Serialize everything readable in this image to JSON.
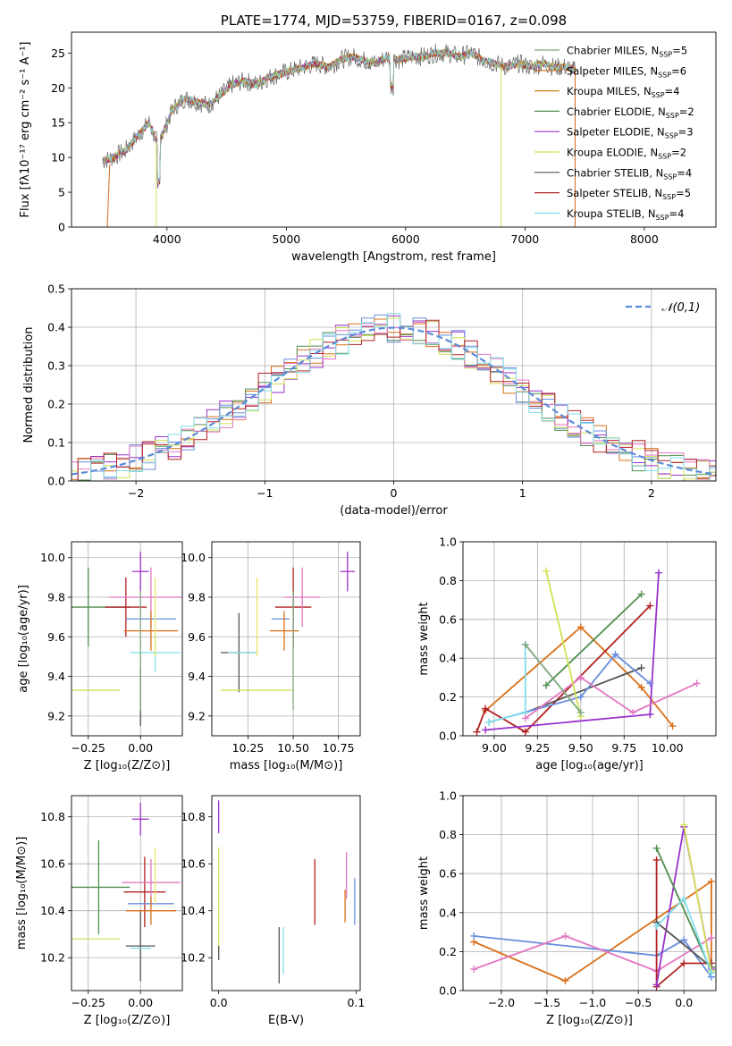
{
  "chart_data": [
    {
      "id": "spectrum",
      "type": "line",
      "title": "PLATE=1774, MJD=53759, FIBERID=0167, z=0.098",
      "xlabel": "wavelength [Angstrom, rest frame]",
      "ylabel": "Flux [fλ10⁻¹⁷ erg cm⁻² s⁻¹ A⁻¹]",
      "xlim": [
        3200,
        8600
      ],
      "ylim": [
        0,
        28
      ],
      "xticks": [
        4000,
        5000,
        6000,
        7000,
        8000
      ],
      "yticks": [
        0,
        5,
        10,
        15,
        20,
        25
      ],
      "grid": false,
      "legend_position": "right",
      "legend": [
        {
          "label": "Chabrier MILES, N",
          "sub": "SSP",
          "suffix": "=5",
          "color": "#7fa87f"
        },
        {
          "label": "Salpeter MILES, N",
          "sub": "SSP",
          "suffix": "=6",
          "color": "#d2691e"
        },
        {
          "label": "Kroupa MILES, N",
          "sub": "SSP",
          "suffix": "=4",
          "color": "#c8860a"
        },
        {
          "label": "Chabrier ELODIE, N",
          "sub": "SSP",
          "suffix": "=2",
          "color": "#4f8f4f"
        },
        {
          "label": "Salpeter ELODIE, N",
          "sub": "SSP",
          "suffix": "=3",
          "color": "#9932cc"
        },
        {
          "label": "Kroupa ELODIE, N",
          "sub": "SSP",
          "suffix": "=2",
          "color": "#d4e157"
        },
        {
          "label": "Chabrier STELIB, N",
          "sub": "SSP",
          "suffix": "=4",
          "color": "#555555"
        },
        {
          "label": "Salpeter STELIB, N",
          "sub": "SSP",
          "suffix": "=5",
          "color": "#b22222"
        },
        {
          "label": "Kroupa STELIB, N",
          "sub": "SSP",
          "suffix": "=4",
          "color": "#80deea"
        }
      ],
      "spectrum_x": [
        3460,
        3550,
        3650,
        3750,
        3850,
        3920,
        3980,
        4050,
        4150,
        4250,
        4350,
        4450,
        4550,
        4650,
        4750,
        4850,
        4950,
        5050,
        5150,
        5250,
        5350,
        5450,
        5550,
        5650,
        5750,
        5850,
        5950,
        6050,
        6150,
        6250,
        6350,
        6450,
        6550,
        6650,
        6750,
        6850,
        6950,
        7050,
        7150,
        7250,
        7350,
        7420
      ],
      "spectrum_y": [
        9.5,
        10,
        11,
        13,
        15,
        12,
        14,
        17,
        18.5,
        18,
        17.5,
        19,
        20.5,
        21,
        20.5,
        21.5,
        22,
        22.5,
        23,
        23.5,
        23,
        24,
        24.5,
        24,
        23.5,
        24.5,
        24,
        24.5,
        24.5,
        25,
        25,
        24.5,
        25,
        24,
        23.5,
        23,
        23.5,
        23,
        23.5,
        23,
        23,
        22.5
      ]
    },
    {
      "id": "residuals",
      "type": "histogram",
      "xlabel": "(data-model)/error",
      "ylabel": "Normed distribution",
      "xlim": [
        -2.5,
        2.5
      ],
      "ylim": [
        0,
        0.5
      ],
      "xticks": [
        -2,
        -1,
        0,
        1,
        2
      ],
      "yticks": [
        0.0,
        0.1,
        0.2,
        0.3,
        0.4,
        0.5
      ],
      "grid": true,
      "legend_position": "top-right",
      "reference_label": "𝒩(0,1)",
      "reference_color": "#5b8bd8",
      "bin_width": 0.1
    },
    {
      "id": "z-age",
      "type": "scatter",
      "xlabel": "Z [log₁₀(Z/Z⊙)]",
      "ylabel": "age  [log₁₀(age/yr)]",
      "xlim": [
        -0.33,
        0.2
      ],
      "ylim": [
        9.1,
        10.08
      ],
      "xticks": [
        -0.25,
        0.0
      ],
      "xticklabels": [
        "−0.25",
        "0.00"
      ],
      "yticks": [
        9.2,
        9.4,
        9.6,
        9.8,
        10.0
      ],
      "grid": true,
      "errorbars": [
        {
          "x": -0.25,
          "y": 9.75,
          "xerr": 0.2,
          "yerr": 0.2,
          "color": "#4f8f4f"
        },
        {
          "x": -0.3,
          "y": 9.33,
          "xerr": 0.2,
          "yerr": 0.0,
          "color": "#d4e157"
        },
        {
          "x": 0.0,
          "y": 9.3,
          "xerr": 0.0,
          "yerr": 0.15,
          "color": "#555555"
        },
        {
          "x": -0.07,
          "y": 9.75,
          "xerr": 0.1,
          "yerr": 0.15,
          "color": "#b22222"
        },
        {
          "x": 0.0,
          "y": 9.93,
          "xerr": 0.04,
          "yerr": 0.1,
          "color": "#9932cc"
        },
        {
          "x": 0.05,
          "y": 9.8,
          "xerr": 0.2,
          "yerr": 0.15,
          "color": "#e377c2"
        },
        {
          "x": 0.05,
          "y": 9.69,
          "xerr": 0.12,
          "yerr": 0.0,
          "color": "#6a8ede"
        },
        {
          "x": 0.05,
          "y": 9.63,
          "xerr": 0.13,
          "yerr": 0.1,
          "color": "#d97018"
        },
        {
          "x": 0.07,
          "y": 9.52,
          "xerr": 0.12,
          "yerr": 0.1,
          "color": "#80deea"
        },
        {
          "x": 0.0,
          "y": 9.53,
          "xerr": 0.0,
          "yerr": 0.3,
          "color": "#7fa87f"
        },
        {
          "x": 0.07,
          "y": 9.7,
          "xerr": 0.0,
          "yerr": 0.2,
          "color": "#e8e86a"
        }
      ]
    },
    {
      "id": "mass-age",
      "type": "scatter",
      "xlabel": "mass [log₁₀(M/M⊙)]",
      "ylabel": "",
      "xlim": [
        10.05,
        10.87
      ],
      "ylim": [
        9.1,
        10.08
      ],
      "xticks": [
        10.25,
        10.5,
        10.75
      ],
      "xticklabels": [
        "10.25",
        "10.50",
        "10.75"
      ],
      "yticks": [
        9.2,
        9.4,
        9.6,
        9.8,
        10.0
      ],
      "grid": true,
      "errorbars": [
        {
          "x": 10.2,
          "y": 9.52,
          "xerr": 0.1,
          "yerr": 0.2,
          "color": "#555555"
        },
        {
          "x": 10.22,
          "y": 9.52,
          "xerr": 0.08,
          "yerr": 0.0,
          "color": "#80deea"
        },
        {
          "x": 10.3,
          "y": 9.33,
          "xerr": 0.2,
          "yerr": 0.0,
          "color": "#d4e157"
        },
        {
          "x": 10.5,
          "y": 9.75,
          "xerr": 0.1,
          "yerr": 0.2,
          "color": "#b22222"
        },
        {
          "x": 10.43,
          "y": 9.69,
          "xerr": 0.05,
          "yerr": 0.0,
          "color": "#6a8ede"
        },
        {
          "x": 10.45,
          "y": 9.63,
          "xerr": 0.08,
          "yerr": 0.1,
          "color": "#d97018"
        },
        {
          "x": 10.55,
          "y": 9.8,
          "xerr": 0.1,
          "yerr": 0.15,
          "color": "#e377c2"
        },
        {
          "x": 10.8,
          "y": 9.93,
          "xerr": 0.04,
          "yerr": 0.1,
          "color": "#9932cc"
        },
        {
          "x": 10.5,
          "y": 9.53,
          "xerr": 0.0,
          "yerr": 0.3,
          "color": "#7fa87f"
        },
        {
          "x": 10.3,
          "y": 9.7,
          "xerr": 0.0,
          "yerr": 0.2,
          "color": "#e8e86a"
        }
      ]
    },
    {
      "id": "age-weight",
      "type": "line",
      "xlabel": "age  [log₁₀(age/yr)]",
      "ylabel": "mass weight",
      "xlim": [
        8.82,
        10.28
      ],
      "ylim": [
        0,
        1.0
      ],
      "xticks": [
        9.0,
        9.25,
        9.5,
        9.75,
        10.0
      ],
      "xticklabels": [
        "9.00",
        "9.25",
        "9.50",
        "9.75",
        "10.00"
      ],
      "yticks": [
        0.0,
        0.2,
        0.4,
        0.6,
        0.8,
        1.0
      ],
      "grid": true,
      "series": [
        {
          "color": "#d97018",
          "x": [
            8.95,
            9.5,
            9.85,
            10.03
          ],
          "y": [
            0.13,
            0.56,
            0.25,
            0.05
          ]
        },
        {
          "color": "#b22222",
          "x": [
            8.9,
            8.95,
            9.18,
            9.9
          ],
          "y": [
            0.02,
            0.14,
            0.02,
            0.67
          ]
        },
        {
          "color": "#9932cc",
          "x": [
            8.95,
            9.9,
            9.95
          ],
          "y": [
            0.03,
            0.11,
            0.84
          ]
        },
        {
          "color": "#4f8f4f",
          "x": [
            9.3,
            9.85
          ],
          "y": [
            0.26,
            0.73
          ]
        },
        {
          "color": "#555555",
          "x": [
            9.18,
            9.85
          ],
          "y": [
            0.12,
            0.35
          ]
        },
        {
          "color": "#6a8ede",
          "x": [
            8.97,
            9.5,
            9.7,
            9.9
          ],
          "y": [
            0.07,
            0.2,
            0.42,
            0.27
          ]
        },
        {
          "color": "#80deea",
          "x": [
            8.97,
            9.18,
            9.18
          ],
          "y": [
            0.07,
            0.12,
            0.47
          ]
        },
        {
          "color": "#e377c2",
          "x": [
            9.18,
            9.5,
            9.8,
            10.17
          ],
          "y": [
            0.09,
            0.3,
            0.12,
            0.27
          ]
        },
        {
          "color": "#d4e157",
          "x": [
            9.3,
            9.5
          ],
          "y": [
            0.85,
            0.1
          ]
        },
        {
          "color": "#7fa87f",
          "x": [
            9.18,
            9.5
          ],
          "y": [
            0.47,
            0.12
          ]
        }
      ]
    },
    {
      "id": "z-mass",
      "type": "scatter",
      "xlabel": "Z [log₁₀(Z/Z⊙)]",
      "ylabel": "mass [log₁₀(M/M⊙)]",
      "xlim": [
        -0.33,
        0.2
      ],
      "ylim": [
        10.06,
        10.89
      ],
      "xticks": [
        -0.25,
        0.0
      ],
      "xticklabels": [
        "−0.25",
        "0.00"
      ],
      "yticks": [
        10.2,
        10.4,
        10.6,
        10.8
      ],
      "grid": true,
      "errorbars": [
        {
          "x": -0.25,
          "y": 10.5,
          "xerr": 0.2,
          "yerr": 0.0,
          "color": "#4f8f4f"
        },
        {
          "x": -0.2,
          "y": 10.5,
          "xerr": 0.0,
          "yerr": 0.2,
          "color": "#4f8f4f"
        },
        {
          "x": -0.3,
          "y": 10.28,
          "xerr": 0.2,
          "yerr": 0.0,
          "color": "#d4e157"
        },
        {
          "x": 0.0,
          "y": 10.25,
          "xerr": 0.07,
          "yerr": 0.15,
          "color": "#555555"
        },
        {
          "x": 0.0,
          "y": 10.24,
          "xerr": 0.05,
          "yerr": 0.0,
          "color": "#80deea"
        },
        {
          "x": 0.02,
          "y": 10.48,
          "xerr": 0.1,
          "yerr": 0.15,
          "color": "#b22222"
        },
        {
          "x": 0.0,
          "y": 10.79,
          "xerr": 0.04,
          "yerr": 0.07,
          "color": "#9932cc"
        },
        {
          "x": 0.05,
          "y": 10.52,
          "xerr": 0.14,
          "yerr": 0.1,
          "color": "#e377c2"
        },
        {
          "x": 0.05,
          "y": 10.43,
          "xerr": 0.11,
          "yerr": 0.0,
          "color": "#6a8ede"
        },
        {
          "x": 0.05,
          "y": 10.4,
          "xerr": 0.12,
          "yerr": 0.06,
          "color": "#d97018"
        },
        {
          "x": 0.07,
          "y": 10.55,
          "xerr": 0.0,
          "yerr": 0.12,
          "color": "#e8e86a"
        }
      ]
    },
    {
      "id": "ebv-mass",
      "type": "scatter",
      "xlabel": "E(B-V)",
      "ylabel": "",
      "xlim": [
        -0.005,
        0.103
      ],
      "ylim": [
        10.06,
        10.89
      ],
      "xticks": [
        0.0,
        0.1
      ],
      "xticklabels": [
        "0.0",
        "0.1"
      ],
      "yticks": [
        10.2,
        10.4,
        10.6,
        10.8
      ],
      "grid": false,
      "errorbars": [
        {
          "x": 0.0,
          "y": 10.8,
          "xerr": 0.0,
          "yerr": 0.07,
          "color": "#9932cc"
        },
        {
          "x": 0.0,
          "y": 10.45,
          "xerr": 0.0,
          "yerr": 0.22,
          "color": "#d4e157"
        },
        {
          "x": 0.0,
          "y": 10.22,
          "xerr": 0.0,
          "yerr": 0.03,
          "color": "#555555"
        },
        {
          "x": 0.044,
          "y": 10.21,
          "xerr": 0.0,
          "yerr": 0.12,
          "color": "#555555"
        },
        {
          "x": 0.047,
          "y": 10.23,
          "xerr": 0.0,
          "yerr": 0.1,
          "color": "#80deea"
        },
        {
          "x": 0.07,
          "y": 10.48,
          "xerr": 0.0,
          "yerr": 0.14,
          "color": "#b22222"
        },
        {
          "x": 0.092,
          "y": 10.42,
          "xerr": 0.0,
          "yerr": 0.07,
          "color": "#d97018"
        },
        {
          "x": 0.093,
          "y": 10.55,
          "xerr": 0.0,
          "yerr": 0.1,
          "color": "#e377c2"
        },
        {
          "x": 0.099,
          "y": 10.44,
          "xerr": 0.0,
          "yerr": 0.1,
          "color": "#6a8ede"
        }
      ]
    },
    {
      "id": "z-weight",
      "type": "line",
      "xlabel": "Z [log₁₀(Z/Z⊙)]",
      "ylabel": "mass weight",
      "xlim": [
        -2.42,
        0.35
      ],
      "ylim": [
        0,
        1.0
      ],
      "xticks": [
        -2.0,
        -1.5,
        -1.0,
        -0.5,
        0.0
      ],
      "xticklabels": [
        "−2.0",
        "−1.5",
        "−1.0",
        "−0.5",
        "0.0"
      ],
      "yticks": [
        0.0,
        0.2,
        0.4,
        0.6,
        0.8,
        1.0
      ],
      "grid": true,
      "series": [
        {
          "color": "#d97018",
          "x": [
            -2.3,
            -1.3,
            0.3,
            0.3
          ],
          "y": [
            0.25,
            0.05,
            0.56,
            0.1
          ]
        },
        {
          "color": "#6a8ede",
          "x": [
            -2.3,
            -0.3,
            0.0,
            0.3
          ],
          "y": [
            0.28,
            0.18,
            0.26,
            0.07
          ]
        },
        {
          "color": "#e377c2",
          "x": [
            -2.3,
            -1.3,
            -0.3,
            0.3
          ],
          "y": [
            0.11,
            0.28,
            0.1,
            0.27
          ]
        },
        {
          "color": "#b22222",
          "x": [
            -0.3,
            -0.3,
            0.0,
            0.3
          ],
          "y": [
            0.67,
            0.02,
            0.14,
            0.14
          ]
        },
        {
          "color": "#9932cc",
          "x": [
            -0.3,
            0.0,
            0.3
          ],
          "y": [
            0.03,
            0.84,
            0.11
          ]
        },
        {
          "color": "#4f8f4f",
          "x": [
            -0.3,
            0.3
          ],
          "y": [
            0.73,
            0.1
          ]
        },
        {
          "color": "#555555",
          "x": [
            -0.3,
            0.3
          ],
          "y": [
            0.35,
            0.12
          ]
        },
        {
          "color": "#d4e157",
          "x": [
            0.0,
            0.3
          ],
          "y": [
            0.85,
            0.1
          ]
        },
        {
          "color": "#80deea",
          "x": [
            -0.3,
            0.0,
            0.3
          ],
          "y": [
            0.33,
            0.47,
            0.09
          ]
        }
      ]
    }
  ]
}
